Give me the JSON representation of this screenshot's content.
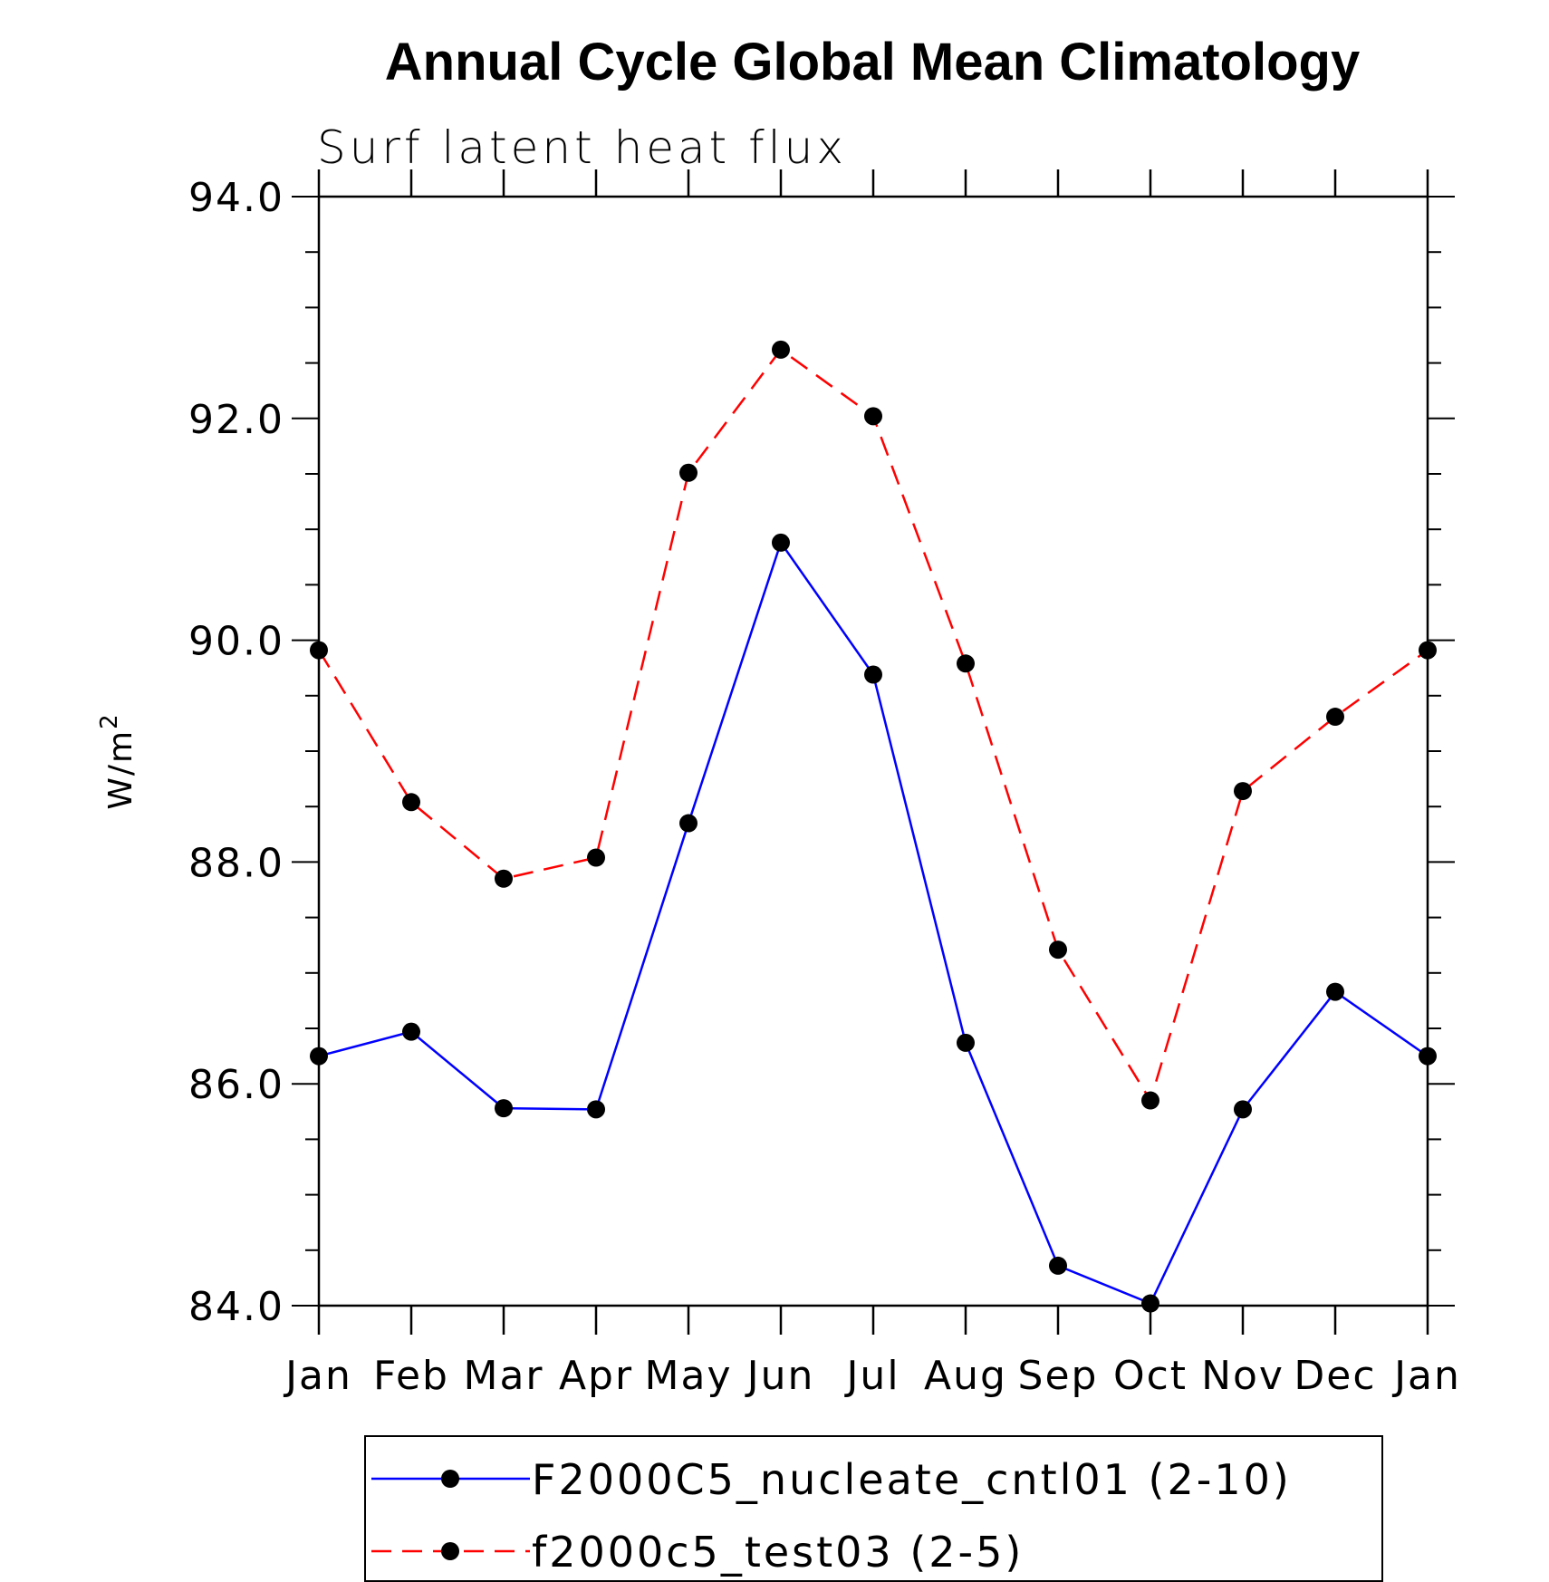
{
  "chart_data": {
    "type": "line",
    "title": "Annual Cycle Global Mean Climatology",
    "subtitle": "Surf latent heat flux",
    "ylabel": "W/m",
    "ylabel_sup": "2",
    "ylim": [
      84.0,
      94.0
    ],
    "yticks": [
      "84.0",
      "86.0",
      "88.0",
      "90.0",
      "92.0",
      "94.0"
    ],
    "categories": [
      "Jan",
      "Feb",
      "Mar",
      "Apr",
      "May",
      "Jun",
      "Jul",
      "Aug",
      "Sep",
      "Oct",
      "Nov",
      "Dec",
      "Jan"
    ],
    "grid": false,
    "legend_position": "bottom",
    "series": [
      {
        "name": "F2000C5_nucleate_cntl01 (2-10)",
        "color": "#0000ff",
        "style": "solid",
        "values": [
          86.25,
          86.47,
          85.78,
          85.77,
          88.35,
          90.88,
          89.69,
          86.37,
          84.36,
          84.02,
          85.77,
          86.83,
          86.25
        ]
      },
      {
        "name": "f2000c5_test03 (2-5)",
        "color": "#ff0000",
        "style": "dashed",
        "values": [
          89.91,
          88.54,
          87.85,
          88.04,
          91.51,
          92.62,
          92.02,
          89.79,
          87.21,
          85.85,
          88.64,
          89.31,
          89.91
        ]
      }
    ],
    "marker_color": "#000000"
  }
}
